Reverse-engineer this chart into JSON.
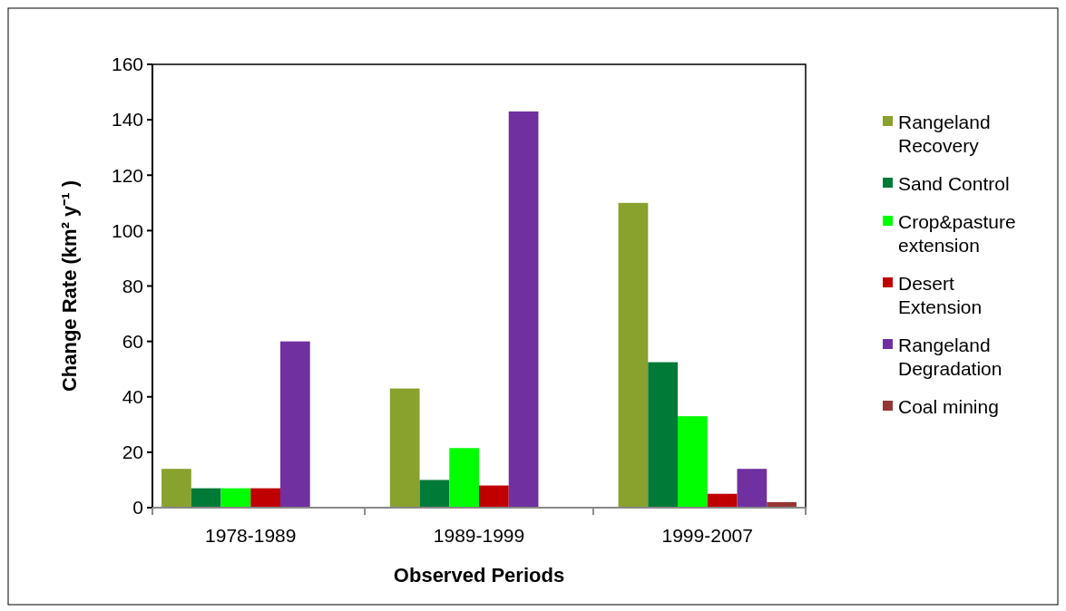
{
  "chart_data": {
    "type": "bar",
    "xlabel": "Observed Periods",
    "ylabel": "Change Rate (km² y⁻¹ )",
    "categories": [
      "1978-1989",
      "1989-1999",
      "1999-2007"
    ],
    "series": [
      {
        "name": "Rangeland Recovery",
        "color": "#89a12d",
        "values": [
          14,
          43,
          110
        ]
      },
      {
        "name": "Sand Control",
        "color": "#007a37",
        "values": [
          7,
          10,
          52.5
        ]
      },
      {
        "name": "Crop&pasture extension",
        "color": "#00ff00",
        "values": [
          7,
          21.5,
          33
        ]
      },
      {
        "name": "Desert Extension",
        "color": "#c00000",
        "values": [
          7,
          8,
          5
        ]
      },
      {
        "name": "Rangeland Degradation",
        "color": "#7030a0",
        "values": [
          60,
          143,
          14
        ]
      },
      {
        "name": "Coal mining",
        "color": "#963634",
        "values": [
          0,
          0,
          2
        ]
      }
    ],
    "ylim": [
      0,
      160
    ],
    "yticks": [
      0,
      20,
      40,
      60,
      80,
      100,
      120,
      140,
      160
    ],
    "grid": false,
    "legend": "right"
  }
}
